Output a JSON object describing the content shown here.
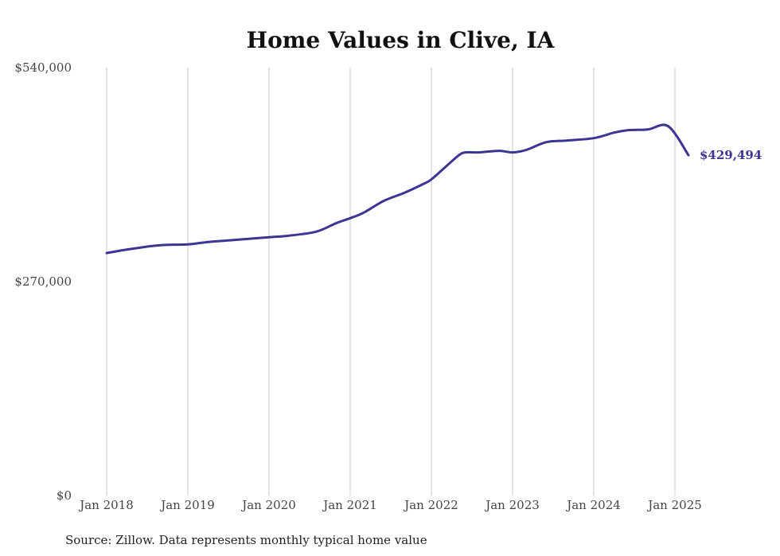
{
  "chart_data": {
    "type": "line",
    "title": "Home Values in Clive, IA",
    "source": "Source: Zillow. Data represents monthly typical home value",
    "y_tick_labels": [
      "$0",
      "$270,000",
      "$540,000"
    ],
    "y_ticks": [
      0,
      270000,
      540000
    ],
    "ylim": [
      0,
      540000
    ],
    "x_tick_labels": [
      "Jan 2018",
      "Jan 2019",
      "Jan 2020",
      "Jan 2021",
      "Jan 2022",
      "Jan 2023",
      "Jan 2024",
      "Jan 2025"
    ],
    "x_ticks": [
      "2018-01",
      "2019-01",
      "2020-01",
      "2021-01",
      "2022-01",
      "2023-01",
      "2024-01",
      "2025-01"
    ],
    "xlim": [
      "2018-01",
      "2025-03"
    ],
    "grid": "vertical",
    "end_label": "$429,494",
    "line_color": "#3c3593",
    "series": [
      {
        "x": [
          "2018-01",
          "2018-03",
          "2018-06",
          "2018-09",
          "2019-01",
          "2019-04",
          "2019-07",
          "2019-10",
          "2020-01",
          "2020-04",
          "2020-08",
          "2020-11",
          "2021-01",
          "2021-03",
          "2021-06",
          "2021-09",
          "2021-12",
          "2022-01",
          "2022-03",
          "2022-05",
          "2022-06",
          "2022-08",
          "2022-11",
          "2023-01",
          "2023-03",
          "2023-06",
          "2023-09",
          "2024-01",
          "2024-04",
          "2024-06",
          "2024-09",
          "2024-12",
          "2025-03"
        ],
        "y": [
          306000,
          309000,
          313000,
          316000,
          317000,
          320000,
          322000,
          324000,
          326000,
          328000,
          333000,
          344000,
          350000,
          357000,
          372000,
          382000,
          394000,
          399000,
          414000,
          429000,
          433000,
          433000,
          435000,
          433000,
          436000,
          446000,
          448000,
          451000,
          458000,
          461000,
          462000,
          466000,
          429494
        ]
      }
    ]
  }
}
